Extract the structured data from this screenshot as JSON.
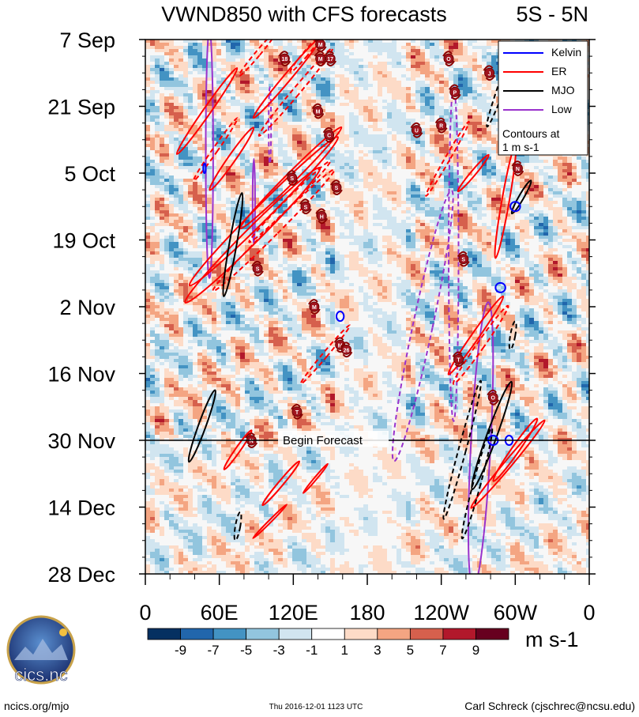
{
  "chart_data": {
    "type": "heatmap",
    "title": "VWND850 with CFS forecasts",
    "region": "5S - 5N",
    "x_ticks": [
      "0",
      "60E",
      "120E",
      "180",
      "120W",
      "60W",
      "0"
    ],
    "x_range_deg_east": [
      0,
      360
    ],
    "y_ticks": [
      "7 Sep",
      "21 Sep",
      "5 Oct",
      "19 Oct",
      "2 Nov",
      "16 Nov",
      "30 Nov",
      "14 Dec",
      "28 Dec"
    ],
    "y_range_days_from_start": [
      0,
      112
    ],
    "forecast_start_day": 84,
    "annotation": "Begin Forecast",
    "colorbar": {
      "units": "m s-1",
      "labels": [
        "-9",
        "-7",
        "-5",
        "-3",
        "-1",
        "1",
        "3",
        "5",
        "7",
        "9"
      ],
      "colors": [
        "#053061",
        "#2166ac",
        "#4393c3",
        "#92c5de",
        "#d1e5f0",
        "#ffffff",
        "#fddbc7",
        "#f4a582",
        "#d6604d",
        "#b2182b",
        "#67001f"
      ]
    },
    "legend": {
      "entries": [
        {
          "name": "Kelvin",
          "color": "#0000ff"
        },
        {
          "name": "ER",
          "color": "#ff0000"
        },
        {
          "name": "MJO",
          "color": "#000000"
        },
        {
          "name": "Low",
          "color": "#9932cc"
        }
      ],
      "note_line1": "Contours at",
      "note_line2": "1 m s-1"
    },
    "contours": [
      {
        "type": "Low",
        "lon": 52,
        "day": 24,
        "rx": 3,
        "ry": 26,
        "rot": 0,
        "dash": false
      },
      {
        "type": "Low",
        "lon": 88,
        "day": 34,
        "rx": 1,
        "ry": 9,
        "rot": 0,
        "dash": false
      },
      {
        "type": "Low",
        "lon": 101,
        "day": 18,
        "rx": 1,
        "ry": 8,
        "rot": 0,
        "dash": true
      },
      {
        "type": "Low",
        "lon": 225,
        "day": 60,
        "rx": 8,
        "ry": 29,
        "rot": 12,
        "dash": true
      },
      {
        "type": "Low",
        "lon": 250,
        "day": 45,
        "rx": 4,
        "ry": 35,
        "rot": 0,
        "dash": true
      },
      {
        "type": "Low",
        "lon": 272,
        "day": 85,
        "rx": 8,
        "ry": 30,
        "rot": 3,
        "dash": false
      },
      {
        "type": "ER",
        "lon": 87,
        "day": 41,
        "rx": 6,
        "ry": 20,
        "rot": 45,
        "dash": false
      },
      {
        "type": "ER",
        "lon": 96,
        "day": 36,
        "rx": 6,
        "ry": 22,
        "rot": 45,
        "dash": false
      },
      {
        "type": "ER",
        "lon": 104,
        "day": 40,
        "rx": 4,
        "ry": 18,
        "rot": 45,
        "dash": true
      },
      {
        "type": "ER",
        "lon": 118,
        "day": 29,
        "rx": 4,
        "ry": 15,
        "rot": 45,
        "dash": false
      },
      {
        "type": "ER",
        "lon": 117,
        "day": 34,
        "rx": 3,
        "ry": 12,
        "rot": 45,
        "dash": true
      },
      {
        "type": "ER",
        "lon": 70,
        "day": 25,
        "rx": 3,
        "ry": 8,
        "rot": 35,
        "dash": false
      },
      {
        "type": "ER",
        "lon": 50,
        "day": 15,
        "rx": 3,
        "ry": 11,
        "rot": 35,
        "dash": false
      },
      {
        "type": "ER",
        "lon": 57,
        "day": 23,
        "rx": 2,
        "ry": 8,
        "rot": 35,
        "dash": true
      },
      {
        "type": "ER",
        "lon": 115,
        "day": 8,
        "rx": 3,
        "ry": 11,
        "rot": 40,
        "dash": false
      },
      {
        "type": "ER",
        "lon": 122,
        "day": 11,
        "rx": 3,
        "ry": 12,
        "rot": 40,
        "dash": true
      },
      {
        "type": "ER",
        "lon": 91,
        "day": 3,
        "rx": 2,
        "ry": 6,
        "rot": 40,
        "dash": true
      },
      {
        "type": "ER",
        "lon": 130,
        "day": 3,
        "rx": 2,
        "ry": 5,
        "rot": 40,
        "dash": true
      },
      {
        "type": "ER",
        "lon": 245,
        "day": 25,
        "rx": 2,
        "ry": 9,
        "rot": 30,
        "dash": true
      },
      {
        "type": "ER",
        "lon": 268,
        "day": 62,
        "rx": 3,
        "ry": 10,
        "rot": 35,
        "dash": false
      },
      {
        "type": "ER",
        "lon": 272,
        "day": 64,
        "rx": 3,
        "ry": 10,
        "rot": 35,
        "dash": true
      },
      {
        "type": "ER",
        "lon": 266,
        "day": 28,
        "rx": 2,
        "ry": 5,
        "rot": 40,
        "dash": false
      },
      {
        "type": "ER",
        "lon": 292,
        "day": 34,
        "rx": 3,
        "ry": 12,
        "rot": 10,
        "dash": false
      },
      {
        "type": "ER",
        "lon": 294,
        "day": 89,
        "rx": 3,
        "ry": 12,
        "rot": 40,
        "dash": false
      },
      {
        "type": "ER",
        "lon": 300,
        "day": 86,
        "rx": 3,
        "ry": 8,
        "rot": 35,
        "dash": false
      },
      {
        "type": "ER",
        "lon": 146,
        "day": 66,
        "rx": 2,
        "ry": 8,
        "rot": 40,
        "dash": true
      },
      {
        "type": "ER",
        "lon": 110,
        "day": 93,
        "rx": 2,
        "ry": 6,
        "rot": 40,
        "dash": false
      },
      {
        "type": "ER",
        "lon": 138,
        "day": 92,
        "rx": 1,
        "ry": 4,
        "rot": 40,
        "dash": false
      },
      {
        "type": "ER",
        "lon": 75,
        "day": 86,
        "rx": 2,
        "ry": 5,
        "rot": 35,
        "dash": false
      },
      {
        "type": "ER",
        "lon": 101,
        "day": 101,
        "rx": 1,
        "ry": 5,
        "rot": 45,
        "dash": false
      },
      {
        "type": "MJO",
        "lon": 71,
        "day": 43,
        "rx": 3,
        "ry": 11,
        "rot": 10,
        "dash": false
      },
      {
        "type": "MJO",
        "lon": 46,
        "day": 81,
        "rx": 3,
        "ry": 8,
        "rot": 20,
        "dash": false
      },
      {
        "type": "MJO",
        "lon": 257,
        "day": 86,
        "rx": 3,
        "ry": 15,
        "rot": 15,
        "dash": true
      },
      {
        "type": "MJO",
        "lon": 281,
        "day": 83,
        "rx": 4,
        "ry": 12,
        "rot": 20,
        "dash": false
      },
      {
        "type": "MJO",
        "lon": 269,
        "day": 93,
        "rx": 3,
        "ry": 12,
        "rot": 15,
        "dash": true
      },
      {
        "type": "MJO",
        "lon": 293,
        "day": 7,
        "rx": 3,
        "ry": 12,
        "rot": 20,
        "dash": true
      },
      {
        "type": "MJO",
        "lon": 305,
        "day": 33,
        "rx": 2,
        "ry": 4,
        "rot": 30,
        "dash": false
      },
      {
        "type": "MJO",
        "lon": 298,
        "day": 62,
        "rx": 2,
        "ry": 3,
        "rot": 10,
        "dash": true
      },
      {
        "type": "MJO",
        "lon": 75,
        "day": 102,
        "rx": 2,
        "ry": 3,
        "rot": 10,
        "dash": true
      },
      {
        "type": "Kelvin",
        "lon": 158,
        "day": 58,
        "rx": 3,
        "ry": 1,
        "rot": 0,
        "dash": false
      },
      {
        "type": "Kelvin",
        "lon": 300,
        "day": 35,
        "rx": 4,
        "ry": 1,
        "rot": 0,
        "dash": false
      },
      {
        "type": "Kelvin",
        "lon": 288,
        "day": 52,
        "rx": 4,
        "ry": 1,
        "rot": 0,
        "dash": false
      },
      {
        "type": "Kelvin",
        "lon": 282,
        "day": 84,
        "rx": 4,
        "ry": 1,
        "rot": 0,
        "dash": false
      },
      {
        "type": "Kelvin",
        "lon": 295,
        "day": 84,
        "rx": 3,
        "ry": 1,
        "rot": 0,
        "dash": false
      },
      {
        "type": "Kelvin",
        "lon": 48,
        "day": 27,
        "rx": 1,
        "ry": 1,
        "rot": 0,
        "dash": false
      }
    ],
    "storm_markers": [
      {
        "label": "M",
        "lon": 142,
        "day": 1
      },
      {
        "label": "M",
        "lon": 142,
        "day": 4
      },
      {
        "label": "17",
        "lon": 150,
        "day": 4
      },
      {
        "label": "18",
        "lon": 113,
        "day": 4
      },
      {
        "label": "M",
        "lon": 140,
        "day": 15
      },
      {
        "label": "C",
        "lon": 149,
        "day": 20
      },
      {
        "label": "S",
        "lon": 119,
        "day": 29
      },
      {
        "label": "S",
        "lon": 155,
        "day": 31
      },
      {
        "label": "S",
        "lon": 130,
        "day": 35
      },
      {
        "label": "H",
        "lon": 143,
        "day": 37
      },
      {
        "label": "S",
        "lon": 91,
        "day": 48
      },
      {
        "label": "M",
        "lon": 137,
        "day": 56
      },
      {
        "label": "M",
        "lon": 158,
        "day": 64
      },
      {
        "label": "26",
        "lon": 163,
        "day": 65
      },
      {
        "label": "T",
        "lon": 123,
        "day": 78
      },
      {
        "label": "N",
        "lon": 86,
        "day": 84
      },
      {
        "label": "O",
        "lon": 246,
        "day": 4
      },
      {
        "label": "J",
        "lon": 279,
        "day": 7
      },
      {
        "label": "P",
        "lon": 251,
        "day": 11
      },
      {
        "label": "U",
        "lon": 220,
        "day": 19
      },
      {
        "label": "R",
        "lon": 240,
        "day": 18
      },
      {
        "label": "N",
        "lon": 302,
        "day": 27
      },
      {
        "label": "S",
        "lon": 258,
        "day": 46
      },
      {
        "label": "T",
        "lon": 254,
        "day": 67
      },
      {
        "label": "O",
        "lon": 282,
        "day": 75
      }
    ]
  },
  "footer": {
    "left": "ncics.org/mjo",
    "center": "Thu 2016-12-01 1123 UTC",
    "right": "Carl Schreck (cjschrec@ncsu.edu)",
    "logo_text": "cics.nc"
  }
}
